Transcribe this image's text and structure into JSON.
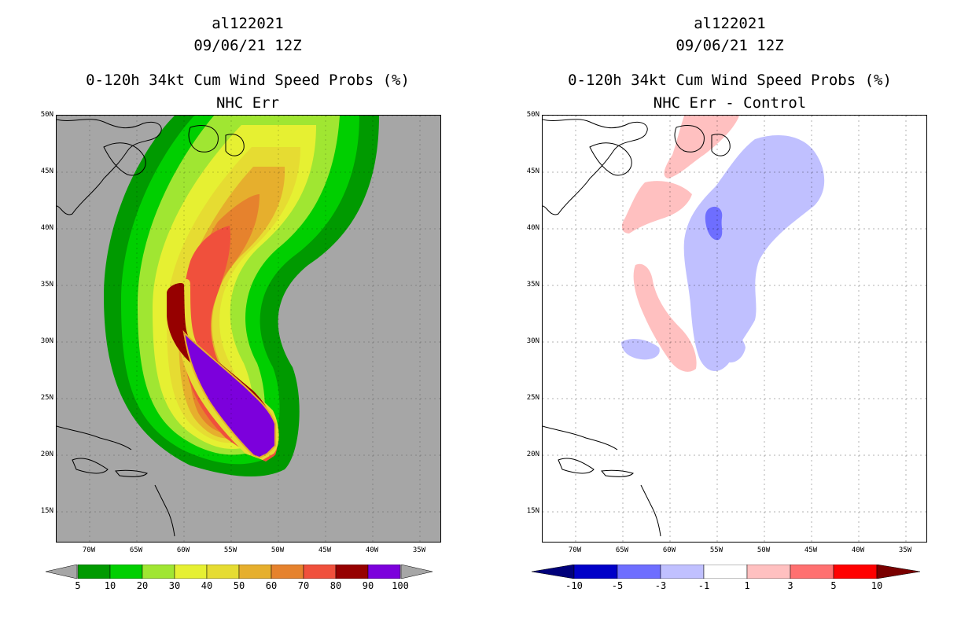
{
  "left_panel": {
    "title_lines": [
      "al122021",
      "09/06/21 12Z",
      "0-120h 34kt Cum Wind Speed Probs (%)",
      "NHC Err"
    ],
    "background_color": "#a6a6a6",
    "y_ticks": [
      "50N",
      "45N",
      "40N",
      "35N",
      "30N",
      "25N",
      "20N",
      "15N"
    ],
    "x_ticks": [
      "70W",
      "65W",
      "60W",
      "55W",
      "50W",
      "45W",
      "40W",
      "35W"
    ],
    "colorbar": {
      "labels": [
        "5",
        "10",
        "20",
        "30",
        "40",
        "50",
        "60",
        "70",
        "80",
        "90",
        "100"
      ],
      "colors": [
        "#009a00",
        "#00cf00",
        "#a0e632",
        "#e6f032",
        "#e6dc32",
        "#e6af2d",
        "#e6822d",
        "#f0503c",
        "#960000",
        "#7c00dc"
      ],
      "end_color": "#a6a6a6"
    }
  },
  "right_panel": {
    "title_lines": [
      "al122021",
      "09/06/21 12Z",
      "0-120h 34kt Cum Wind Speed Probs (%)",
      "NHC Err - Control"
    ],
    "background_color": "#ffffff",
    "y_ticks": [
      "50N",
      "45N",
      "40N",
      "35N",
      "30N",
      "25N",
      "20N",
      "15N"
    ],
    "x_ticks": [
      "70W",
      "65W",
      "60W",
      "55W",
      "50W",
      "45W",
      "40W",
      "35W"
    ],
    "colorbar": {
      "labels": [
        "-10",
        "-5",
        "-3",
        "-1",
        "1",
        "3",
        "5",
        "10"
      ],
      "colors": [
        "#0000c8",
        "#6e6eff",
        "#c0c0ff",
        "#ffffff",
        "#ffc0c0",
        "#ff7070",
        "#ff0000"
      ],
      "low_end_color": "#00007a",
      "high_end_color": "#7a0000"
    }
  }
}
